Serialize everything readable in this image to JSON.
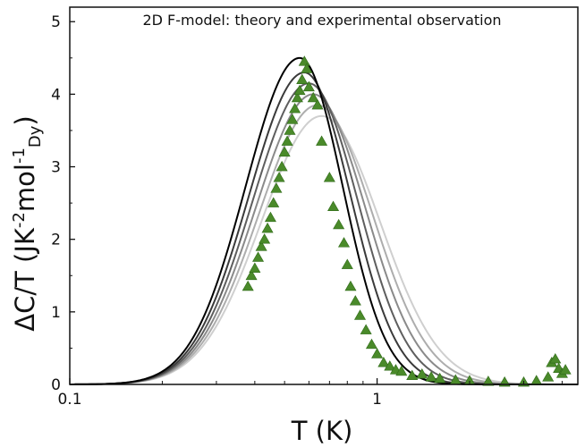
{
  "chart_data": {
    "type": "scatter",
    "title": "2D F-model: theory and experimental observation",
    "xlabel": "T (K)",
    "ylabel_main": "ΔC/T (JK",
    "ylabel_sup1": "-2",
    "ylabel_mid": "mol",
    "ylabel_sup2": "-1",
    "ylabel_sub": "Dy",
    "ylabel_end": ")",
    "x_scale": "log",
    "xlim": [
      0.1,
      4.5
    ],
    "ylim": [
      0,
      5.2
    ],
    "x_ticks": [
      0.1,
      1
    ],
    "x_tick_labels": [
      "0.1",
      "1"
    ],
    "y_ticks": [
      0,
      1,
      2,
      3,
      4,
      5
    ],
    "y_tick_labels": [
      "0",
      "1",
      "2",
      "3",
      "4",
      "5"
    ],
    "grid": false,
    "theory_curves": [
      {
        "color": "#000000",
        "peak_T": 0.56,
        "peak_value": 4.5,
        "width_low": 0.176,
        "width_high": 0.14
      },
      {
        "color": "#3a3a3a",
        "peak_T": 0.58,
        "peak_value": 4.3,
        "width_low": 0.18,
        "width_high": 0.15
      },
      {
        "color": "#5e5e5e",
        "peak_T": 0.6,
        "peak_value": 4.15,
        "width_low": 0.184,
        "width_high": 0.16
      },
      {
        "color": "#8a8a8a",
        "peak_T": 0.62,
        "peak_value": 4.0,
        "width_low": 0.188,
        "width_high": 0.17
      },
      {
        "color": "#adadad",
        "peak_T": 0.64,
        "peak_value": 3.85,
        "width_low": 0.192,
        "width_high": 0.18
      },
      {
        "color": "#cfcfcf",
        "peak_T": 0.66,
        "peak_value": 3.7,
        "width_low": 0.196,
        "width_high": 0.19
      }
    ],
    "experimental": {
      "color": "#4a8a2a",
      "x": [
        0.38,
        0.39,
        0.4,
        0.41,
        0.42,
        0.43,
        0.44,
        0.45,
        0.46,
        0.47,
        0.48,
        0.49,
        0.5,
        0.51,
        0.52,
        0.53,
        0.54,
        0.55,
        0.56,
        0.57,
        0.58,
        0.59,
        0.6,
        0.62,
        0.64,
        0.66,
        0.7,
        0.72,
        0.75,
        0.78,
        0.8,
        0.82,
        0.85,
        0.88,
        0.92,
        0.96,
        1.0,
        1.05,
        1.1,
        1.15,
        1.2,
        1.3,
        1.4,
        1.5,
        1.6,
        1.8,
        2.0,
        2.3,
        2.6,
        3.0,
        3.3,
        3.6,
        3.7,
        3.8,
        3.9,
        4.0,
        4.1
      ],
      "y": [
        1.35,
        1.5,
        1.6,
        1.75,
        1.9,
        2.0,
        2.15,
        2.3,
        2.5,
        2.7,
        2.85,
        3.0,
        3.2,
        3.35,
        3.5,
        3.65,
        3.8,
        3.95,
        4.05,
        4.2,
        4.45,
        4.35,
        4.1,
        3.95,
        3.85,
        3.35,
        2.85,
        2.45,
        2.2,
        1.95,
        1.65,
        1.35,
        1.15,
        0.95,
        0.75,
        0.55,
        0.42,
        0.3,
        0.25,
        0.2,
        0.18,
        0.12,
        0.14,
        0.1,
        0.08,
        0.06,
        0.05,
        0.04,
        0.03,
        0.03,
        0.05,
        0.1,
        0.3,
        0.35,
        0.22,
        0.15,
        0.2
      ]
    }
  }
}
